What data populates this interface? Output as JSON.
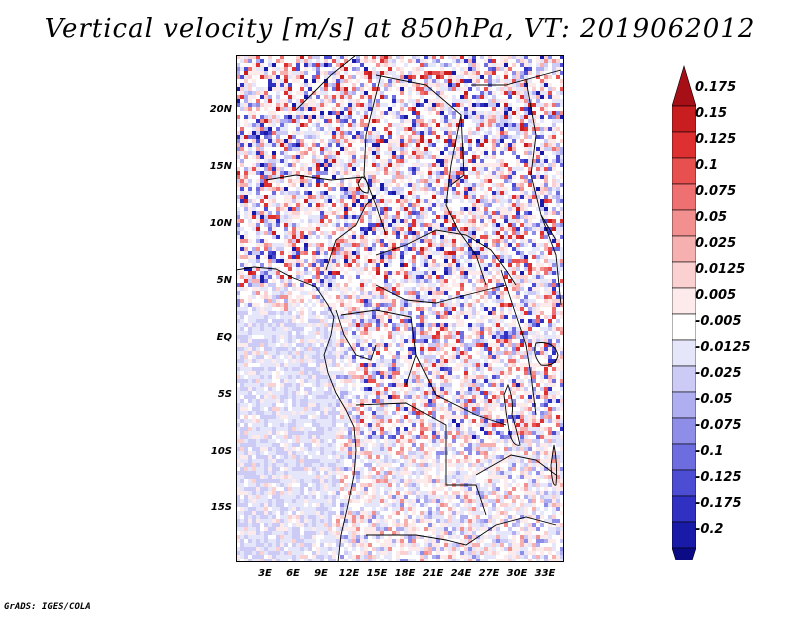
{
  "title": "Vertical velocity [m/s] at 850hPa, VT: 2019062012",
  "footer": "GrADS: IGES/COLA",
  "map": {
    "type": "shaded-field",
    "variable": "Vertical velocity",
    "units": "m/s",
    "level": "850hPa",
    "valid_time": "2019062012",
    "region": "Central Africa",
    "lat_labels": [
      "20N",
      "15N",
      "10N",
      "5N",
      "EQ",
      "5S",
      "10S",
      "15S"
    ],
    "lon_labels": [
      "3E",
      "6E",
      "9E",
      "12E",
      "15E",
      "18E",
      "21E",
      "24E",
      "27E",
      "30E",
      "33E"
    ]
  },
  "colorbar": {
    "levels": [
      "0.175",
      "0.15",
      "0.125",
      "0.1",
      "0.075",
      "0.05",
      "0.025",
      "0.0125",
      "0.005",
      "-0.005",
      "-0.0125",
      "-0.025",
      "-0.05",
      "-0.075",
      "-0.1",
      "-0.125",
      "-0.175",
      "-0.2"
    ],
    "colors": [
      "#a50f15",
      "#c81e20",
      "#de3030",
      "#e85050",
      "#ef7070",
      "#f29090",
      "#f6b0b0",
      "#fad0d0",
      "#fdeaea",
      "#ffffff",
      "#e6e6fb",
      "#cbcbf6",
      "#aeaef0",
      "#8e8ee8",
      "#6d6ddf",
      "#4d4dd3",
      "#3030c2",
      "#1a1aa8",
      "#0b0b86"
    ]
  }
}
